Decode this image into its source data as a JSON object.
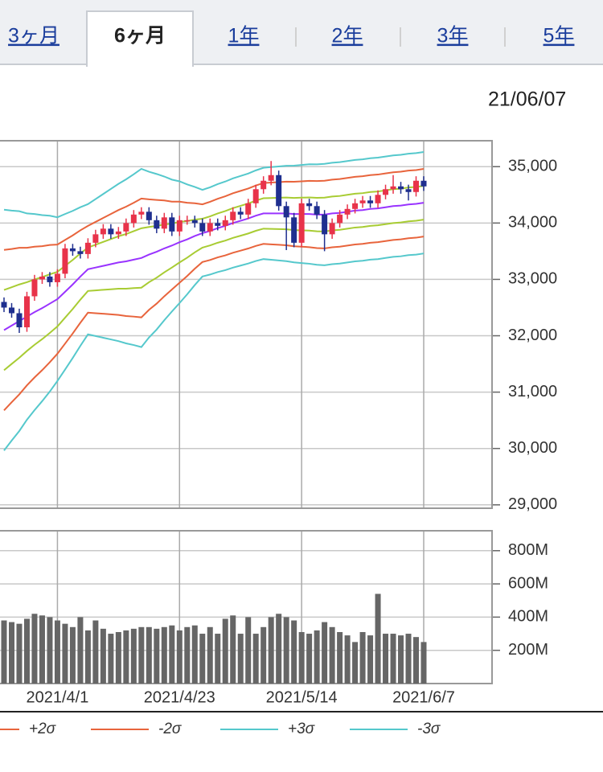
{
  "tabs": [
    "3ヶ月",
    "6ヶ月",
    "1年",
    "2年",
    "3年",
    "5年"
  ],
  "selected_tab": 1,
  "date": "21/06/07",
  "chart_data": [
    {
      "type": "candlestick",
      "up_color": "#e8334a",
      "down_color": "#1f2f8f",
      "open": [
        32600,
        32500,
        32400,
        32150,
        32700,
        33000,
        33050,
        32950,
        33100,
        33550,
        33500,
        33450,
        33650,
        33800,
        33900,
        33800,
        33850,
        34000,
        34150,
        34200,
        34050,
        33900,
        34100,
        33850,
        34050,
        34050,
        34000,
        33850,
        34000,
        33950,
        34050,
        34200,
        34150,
        34350,
        34600,
        34750,
        34850,
        34300,
        34100,
        33650,
        34350,
        34300,
        34150,
        33800,
        34000,
        34150,
        34250,
        34350,
        34400,
        34350,
        34500,
        34600,
        34650,
        34600,
        34550,
        34750
      ],
      "high": [
        32680,
        32580,
        32480,
        32780,
        33080,
        33130,
        33130,
        33180,
        33630,
        33630,
        33580,
        33730,
        33880,
        33980,
        33980,
        33930,
        34080,
        34230,
        34280,
        34280,
        34130,
        34180,
        34180,
        34130,
        34130,
        34130,
        34080,
        34080,
        34080,
        34130,
        34280,
        34280,
        34430,
        34680,
        34830,
        35100,
        34930,
        34380,
        34180,
        34430,
        34430,
        34380,
        34230,
        34080,
        34230,
        34330,
        34430,
        34480,
        34480,
        34580,
        34680,
        34850,
        34730,
        34680,
        34830,
        34830
      ],
      "low": [
        32420,
        32320,
        32050,
        32070,
        32620,
        32920,
        32870,
        32870,
        33020,
        33420,
        33370,
        33370,
        33570,
        33720,
        33720,
        33720,
        33770,
        33920,
        34070,
        33970,
        33820,
        33820,
        33770,
        33770,
        33970,
        33920,
        33770,
        33770,
        33870,
        33870,
        33970,
        34070,
        34070,
        34270,
        34520,
        34670,
        34220,
        33520,
        33570,
        33570,
        34220,
        34070,
        33500,
        33720,
        33920,
        34070,
        34170,
        34270,
        34270,
        34270,
        34420,
        34520,
        34520,
        34400,
        34470,
        34570
      ],
      "close": [
        32500,
        32400,
        32150,
        32700,
        33000,
        33050,
        32950,
        33100,
        33550,
        33500,
        33450,
        33650,
        33800,
        33900,
        33800,
        33850,
        34000,
        34150,
        34200,
        34050,
        33900,
        34100,
        33850,
        34050,
        34050,
        34000,
        33850,
        34000,
        33950,
        34050,
        34200,
        34150,
        34350,
        34600,
        34750,
        34850,
        34300,
        34100,
        33650,
        34350,
        34300,
        34150,
        33800,
        34000,
        34150,
        34250,
        34350,
        34400,
        34350,
        34500,
        34600,
        34650,
        34600,
        34550,
        34750,
        34650
      ],
      "series": [
        {
          "color": "#55c8cc",
          "name": "-3σ",
          "values": [
            29964,
            30140,
            30310,
            30510,
            30680,
            30840,
            31010,
            31198,
            31400,
            31605,
            31820,
            32025,
            31995,
            31965,
            31935,
            31905,
            31865,
            31835,
            31799,
            31970,
            32110,
            32275,
            32430,
            32580,
            32735,
            32900,
            33052,
            33086,
            33130,
            33164,
            33208,
            33245,
            33282,
            33326,
            33360,
            33348,
            33336,
            33324,
            33302,
            33290,
            33278,
            33259,
            33250,
            33270,
            33280,
            33300,
            33320,
            33330,
            33350,
            33360,
            33380,
            33400,
            33410,
            33430,
            33440,
            33460
          ]
        },
        {
          "color": "#55c8cc",
          "name": "+3σ",
          "values": [
            34236,
            34220,
            34210,
            34170,
            34160,
            34140,
            34130,
            34102,
            34160,
            34215,
            34280,
            34335,
            34425,
            34515,
            34605,
            34695,
            34775,
            34865,
            34961,
            34910,
            34870,
            34825,
            34770,
            34740,
            34685,
            34640,
            34588,
            34634,
            34690,
            34736,
            34792,
            34835,
            34878,
            34934,
            34980,
            34992,
            35004,
            35016,
            35018,
            35030,
            35042,
            35041,
            35050,
            35070,
            35080,
            35100,
            35120,
            35130,
            35150,
            35160,
            35180,
            35200,
            35210,
            35230,
            35240,
            35260
          ]
        },
        {
          "color": "#e8643c",
          "name": "-2σ",
          "values": [
            30676,
            30820,
            30960,
            31120,
            31260,
            31390,
            31530,
            31682,
            31860,
            32040,
            32230,
            32410,
            32400,
            32390,
            32380,
            32370,
            32350,
            32340,
            32326,
            32460,
            32570,
            32700,
            32820,
            32940,
            33060,
            33190,
            33308,
            33344,
            33390,
            33426,
            33472,
            33510,
            33548,
            33594,
            33630,
            33622,
            33614,
            33606,
            33588,
            33580,
            33572,
            33556,
            33550,
            33570,
            33580,
            33600,
            33620,
            33630,
            33650,
            33660,
            33680,
            33700,
            33710,
            33730,
            33740,
            33760
          ]
        },
        {
          "color": "#e8643c",
          "name": "+2σ",
          "values": [
            33524,
            33540,
            33560,
            33560,
            33580,
            33590,
            33610,
            33618,
            33700,
            33780,
            33870,
            33950,
            34020,
            34090,
            34160,
            34230,
            34290,
            34360,
            34434,
            34420,
            34410,
            34400,
            34380,
            34380,
            34360,
            34350,
            34332,
            34376,
            34430,
            34474,
            34528,
            34570,
            34612,
            34666,
            34710,
            34718,
            34726,
            34734,
            34732,
            34740,
            34748,
            34744,
            34750,
            34770,
            34780,
            34800,
            34820,
            34830,
            34850,
            34860,
            34880,
            34900,
            34910,
            34930,
            34940,
            34960
          ]
        },
        {
          "color": "#a8cc33",
          "values": [
            31388,
            31500,
            31610,
            31730,
            31840,
            31940,
            32050,
            32166,
            32320,
            32475,
            32640,
            32795,
            32805,
            32815,
            32825,
            32835,
            32835,
            32845,
            32853,
            32950,
            33030,
            33125,
            33210,
            33300,
            33385,
            33480,
            33564,
            33602,
            33650,
            33688,
            33736,
            33775,
            33814,
            33862,
            33900,
            33896,
            33892,
            33888,
            33874,
            33870,
            33866,
            33853,
            33850,
            33870,
            33880,
            33900,
            33920,
            33930,
            33950,
            33960,
            33980,
            34000,
            34010,
            34030,
            34040,
            34060
          ]
        },
        {
          "color": "#a8cc33",
          "values": [
            32812,
            32860,
            32910,
            32950,
            33000,
            33040,
            33090,
            33134,
            33240,
            33345,
            33460,
            33565,
            33615,
            33665,
            33715,
            33765,
            33805,
            33855,
            33907,
            33930,
            33950,
            33975,
            33990,
            34020,
            34035,
            34060,
            34076,
            34118,
            34170,
            34212,
            34264,
            34305,
            34346,
            34398,
            34440,
            34444,
            34448,
            34452,
            34446,
            34450,
            34454,
            34447,
            34450,
            34470,
            34480,
            34500,
            34520,
            34530,
            34550,
            34560,
            34580,
            34600,
            34610,
            34630,
            34640,
            34660
          ]
        },
        {
          "color": "#9933ff",
          "values": [
            32100,
            32180,
            32260,
            32340,
            32420,
            32490,
            32570,
            32650,
            32780,
            32910,
            33050,
            33180,
            33210,
            33240,
            33270,
            33300,
            33320,
            33350,
            33380,
            33440,
            33490,
            33550,
            33600,
            33660,
            33710,
            33770,
            33820,
            33860,
            33910,
            33950,
            34000,
            34040,
            34080,
            34130,
            34170,
            34170,
            34170,
            34170,
            34160,
            34160,
            34160,
            34150,
            34150,
            34170,
            34180,
            34200,
            34220,
            34230,
            34250,
            34260,
            34280,
            34300,
            34310,
            34330,
            34340,
            34360
          ]
        }
      ],
      "ylim": [
        28940,
        35460
      ],
      "yticks": [
        {
          "value": 29000,
          "label": "29,000"
        },
        {
          "value": 30000,
          "label": "30,000"
        },
        {
          "value": 31000,
          "label": "31,000"
        },
        {
          "value": 32000,
          "label": "32,000"
        },
        {
          "value": 33000,
          "label": "33,000"
        },
        {
          "value": 34000,
          "label": "34,000"
        },
        {
          "value": 35000,
          "label": "35,000"
        }
      ],
      "grid": true
    },
    {
      "type": "bar",
      "color": "#666666",
      "categories": [
        null,
        null,
        null,
        null,
        null,
        null,
        null,
        "2021/4/1",
        null,
        null,
        null,
        null,
        null,
        null,
        null,
        null,
        null,
        null,
        null,
        null,
        null,
        null,
        null,
        "2021/4/23",
        null,
        null,
        null,
        null,
        null,
        null,
        null,
        null,
        null,
        null,
        null,
        null,
        null,
        null,
        null,
        "2021/5/14",
        null,
        null,
        null,
        null,
        null,
        null,
        null,
        null,
        null,
        null,
        null,
        null,
        null,
        null,
        null,
        "2021/6/7"
      ],
      "values": [
        380,
        370,
        360,
        390,
        420,
        410,
        400,
        380,
        360,
        340,
        400,
        320,
        380,
        330,
        300,
        310,
        320,
        330,
        340,
        340,
        330,
        340,
        350,
        320,
        340,
        350,
        300,
        340,
        300,
        390,
        410,
        300,
        400,
        300,
        340,
        400,
        420,
        400,
        380,
        310,
        300,
        320,
        370,
        340,
        310,
        290,
        250,
        310,
        290,
        540,
        300,
        300,
        290,
        300,
        280,
        250
      ],
      "ylim": [
        0,
        920
      ],
      "yticks": [
        {
          "value": 200,
          "label": "200M"
        },
        {
          "value": 400,
          "label": "400M"
        },
        {
          "value": 600,
          "label": "600M"
        },
        {
          "value": 800,
          "label": "800M"
        }
      ],
      "grid": true
    }
  ]
}
